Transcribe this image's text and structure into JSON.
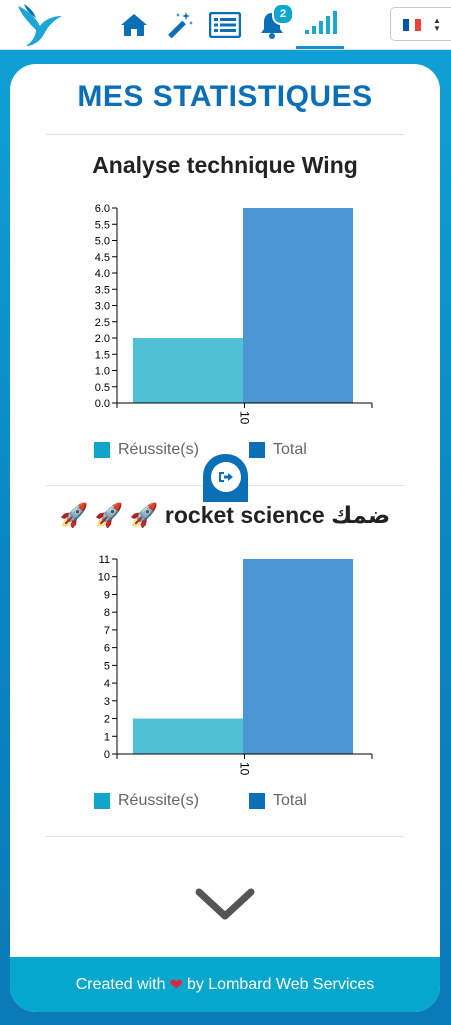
{
  "colors": {
    "brand_blue": "#0b6fb8",
    "accent_cyan": "#11a6cf",
    "bar_success": "#4fc1d7",
    "bar_total": "#4b97d3",
    "footer_bg": "#05a8cc"
  },
  "nav": {
    "icons": [
      "logo-bird",
      "home-icon",
      "magic-wand-icon",
      "list-icon",
      "bell-icon",
      "stats-icon"
    ],
    "notification_count": "2",
    "active": "stats",
    "language_flag": "france-flag"
  },
  "page": {
    "title": "MES STATISTIQUES"
  },
  "legend": {
    "success_label": "Réussite(s)",
    "total_label": "Total"
  },
  "chart_data": [
    {
      "type": "bar",
      "title": "Analyse technique Wing",
      "categories": [
        "10"
      ],
      "series": [
        {
          "name": "Réussite(s)",
          "values": [
            2
          ]
        },
        {
          "name": "Total",
          "values": [
            6
          ]
        }
      ],
      "ylim": [
        0,
        6
      ],
      "yticks": [
        "0.0",
        "0.5",
        "1.0",
        "1.5",
        "2.0",
        "2.5",
        "3.0",
        "3.5",
        "4.0",
        "4.5",
        "5.0",
        "5.5",
        "6.0"
      ],
      "legend_position": "bottom"
    },
    {
      "type": "bar",
      "title": "🚀 🚀 🚀 rocket science ضمك",
      "categories": [
        "10"
      ],
      "series": [
        {
          "name": "Réussite(s)",
          "values": [
            2
          ]
        },
        {
          "name": "Total",
          "values": [
            11
          ]
        }
      ],
      "ylim": [
        0,
        11
      ],
      "yticks": [
        "0",
        "1",
        "2",
        "3",
        "4",
        "5",
        "6",
        "7",
        "8",
        "9",
        "10",
        "11"
      ],
      "legend_position": "bottom"
    }
  ],
  "footer": {
    "prefix": "Created with",
    "suffix": "by Lombard Web Services"
  }
}
